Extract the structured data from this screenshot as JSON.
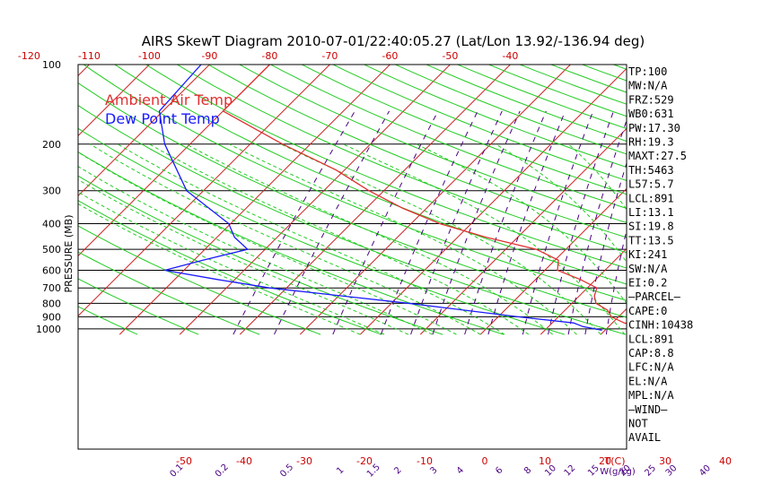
{
  "chart_data": {
    "type": "line",
    "title": "AIRS SkewT Diagram 2010-07-01/22:40:05.27 (Lat/Lon 13.92/-136.94 deg)",
    "ylabel": "PRESSURE (MB)",
    "xlabel": "T(C)",
    "mixing_ratio_label": "W(g/kg)",
    "pressure_ticks": [
      100,
      200,
      300,
      400,
      500,
      600,
      700,
      800,
      900,
      1000
    ],
    "top_temp_ticks": [
      -120,
      -110,
      -100,
      -90,
      -80,
      -70,
      -60,
      -50,
      -40
    ],
    "bottom_temp_ticks": [
      -50,
      -40,
      -30,
      -20,
      -10,
      0,
      10,
      20,
      30,
      40
    ],
    "mixing_ratio_ticks": [
      "0.1",
      "0.2",
      "0.5",
      "1",
      "1.5",
      "2",
      "3",
      "4",
      "6",
      "8",
      "10",
      "12",
      "15",
      "20",
      "25",
      "30",
      "40"
    ],
    "legend": {
      "position": "top-left",
      "entries": [
        {
          "name": "Ambient Air Temp",
          "color": "#e03030"
        },
        {
          "name": "Dew Point Temp",
          "color": "#1a1aff"
        }
      ]
    },
    "series": [
      {
        "name": "Ambient Air Temp",
        "color": "#e03030",
        "points": [
          {
            "p": 100,
            "t": -80
          },
          {
            "p": 150,
            "t": -80
          },
          {
            "p": 200,
            "t": -64.6
          },
          {
            "p": 250,
            "t": -51.5
          },
          {
            "p": 300,
            "t": -42.5
          },
          {
            "p": 350,
            "t": -33.9
          },
          {
            "p": 400,
            "t": -25.2
          },
          {
            "p": 450,
            "t": -15.3
          },
          {
            "p": 500,
            "t": -4.9
          },
          {
            "p": 550,
            "t": 0.6
          },
          {
            "p": 600,
            "t": 2.1
          },
          {
            "p": 650,
            "t": 7.4
          },
          {
            "p": 700,
            "t": 11.6
          },
          {
            "p": 750,
            "t": 12.5
          },
          {
            "p": 800,
            "t": 14.0
          },
          {
            "p": 850,
            "t": 17.1
          },
          {
            "p": 900,
            "t": 18.8
          },
          {
            "p": 950,
            "t": 22.0
          },
          {
            "p": 980,
            "t": 25.3
          },
          {
            "p": 1012,
            "t": 28.0
          }
        ]
      },
      {
        "name": "Dew Point Temp",
        "color": "#1a1aff",
        "points": [
          {
            "p": 100,
            "t": -91.4
          },
          {
            "p": 150,
            "t": -90.6
          },
          {
            "p": 200,
            "t": -84.2
          },
          {
            "p": 300,
            "t": -72.8
          },
          {
            "p": 400,
            "t": -60.3
          },
          {
            "p": 450,
            "t": -57.1
          },
          {
            "p": 500,
            "t": -52.9
          },
          {
            "p": 550,
            "t": -58.5
          },
          {
            "p": 600,
            "t": -63.2
          },
          {
            "p": 650,
            "t": -53.0
          },
          {
            "p": 700,
            "t": -42.8
          },
          {
            "p": 800,
            "t": -17.2
          },
          {
            "p": 900,
            "t": 3.3
          },
          {
            "p": 950,
            "t": 13.6
          },
          {
            "p": 980,
            "t": 15.7
          },
          {
            "p": 1012,
            "t": 19.5
          }
        ]
      }
    ],
    "indices": [
      "TP:100",
      "MW:N/A",
      "FRZ:529",
      "WB0:631",
      "PW:17.30",
      "RH:19.3",
      "MAXT:27.5",
      "TH:5463",
      "L57:5.7",
      "LCL:891",
      "LI:13.1",
      "SI:19.8",
      "TT:13.5",
      "KI:241",
      "SW:N/A",
      "EI:0.2",
      "—PARCEL—",
      "CAPE:0",
      "CINH:10438",
      "LCL:891",
      "CAP:8.8",
      "LFC:N/A",
      "EL:N/A",
      "MPL:N/A",
      "—WIND—",
      "NOT",
      "AVAIL"
    ],
    "colors": {
      "isotherm": "#cc2020",
      "dry_adiabat": "#22cc22",
      "moist_adiabat": "#22cc22",
      "mixing_ratio": "#4b0082",
      "isobar": "#000000"
    },
    "grid": true
  }
}
